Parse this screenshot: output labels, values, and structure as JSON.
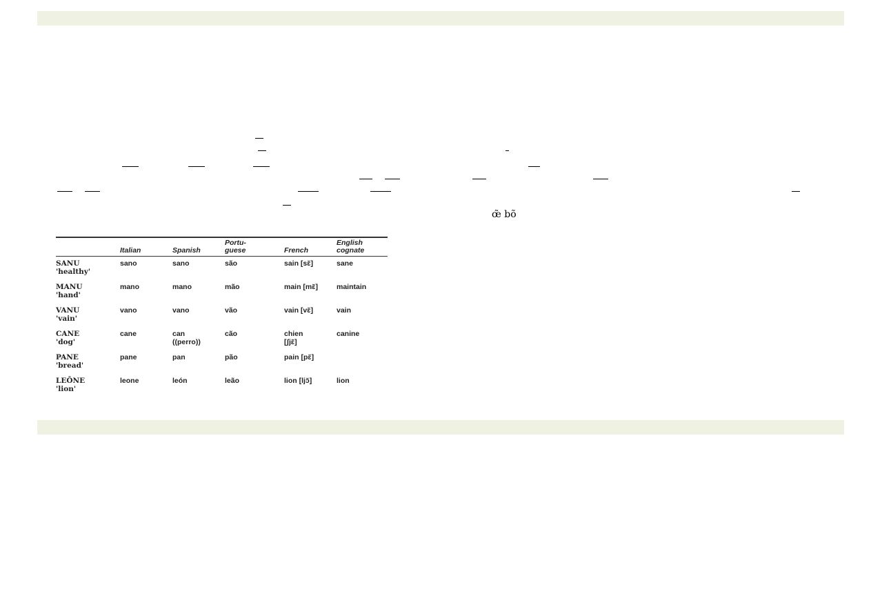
{
  "colors": {
    "banner": "#eff1e3"
  },
  "fragment": "œ̃ bõ",
  "table": {
    "headers": [
      "",
      "Italian",
      "Spanish",
      "Portu-\nguese",
      "French",
      "English\ncognate"
    ],
    "rows": [
      {
        "latin": "SANU",
        "gloss": "'healthy'",
        "cells": [
          "sano",
          "sano",
          "são",
          "sain [sɛ̃]",
          "sane"
        ]
      },
      {
        "latin": "MANU",
        "gloss": "'hand'",
        "cells": [
          "mano",
          "mano",
          "mão",
          "main [mɛ̃]",
          "maintain"
        ]
      },
      {
        "latin": "VANU",
        "gloss": "'vain'",
        "cells": [
          "vano",
          "vano",
          "vão",
          "vain [vɛ̃]",
          "vain"
        ]
      },
      {
        "latin": "CANE",
        "gloss": "'dog'",
        "cells": [
          "cane",
          "can\n((perro))",
          "cão",
          "chien\n[ʃjɛ̃]",
          "canine"
        ]
      },
      {
        "latin": "PANE",
        "gloss": "'bread'",
        "cells": [
          "pane",
          "pan",
          "pão",
          "pain [pɛ̃]",
          ""
        ]
      },
      {
        "latin": "LEŌNE",
        "gloss": "'lion'",
        "cells": [
          "leone",
          "león",
          "leão",
          "lion [ljɔ̃]",
          "lion"
        ]
      }
    ]
  }
}
